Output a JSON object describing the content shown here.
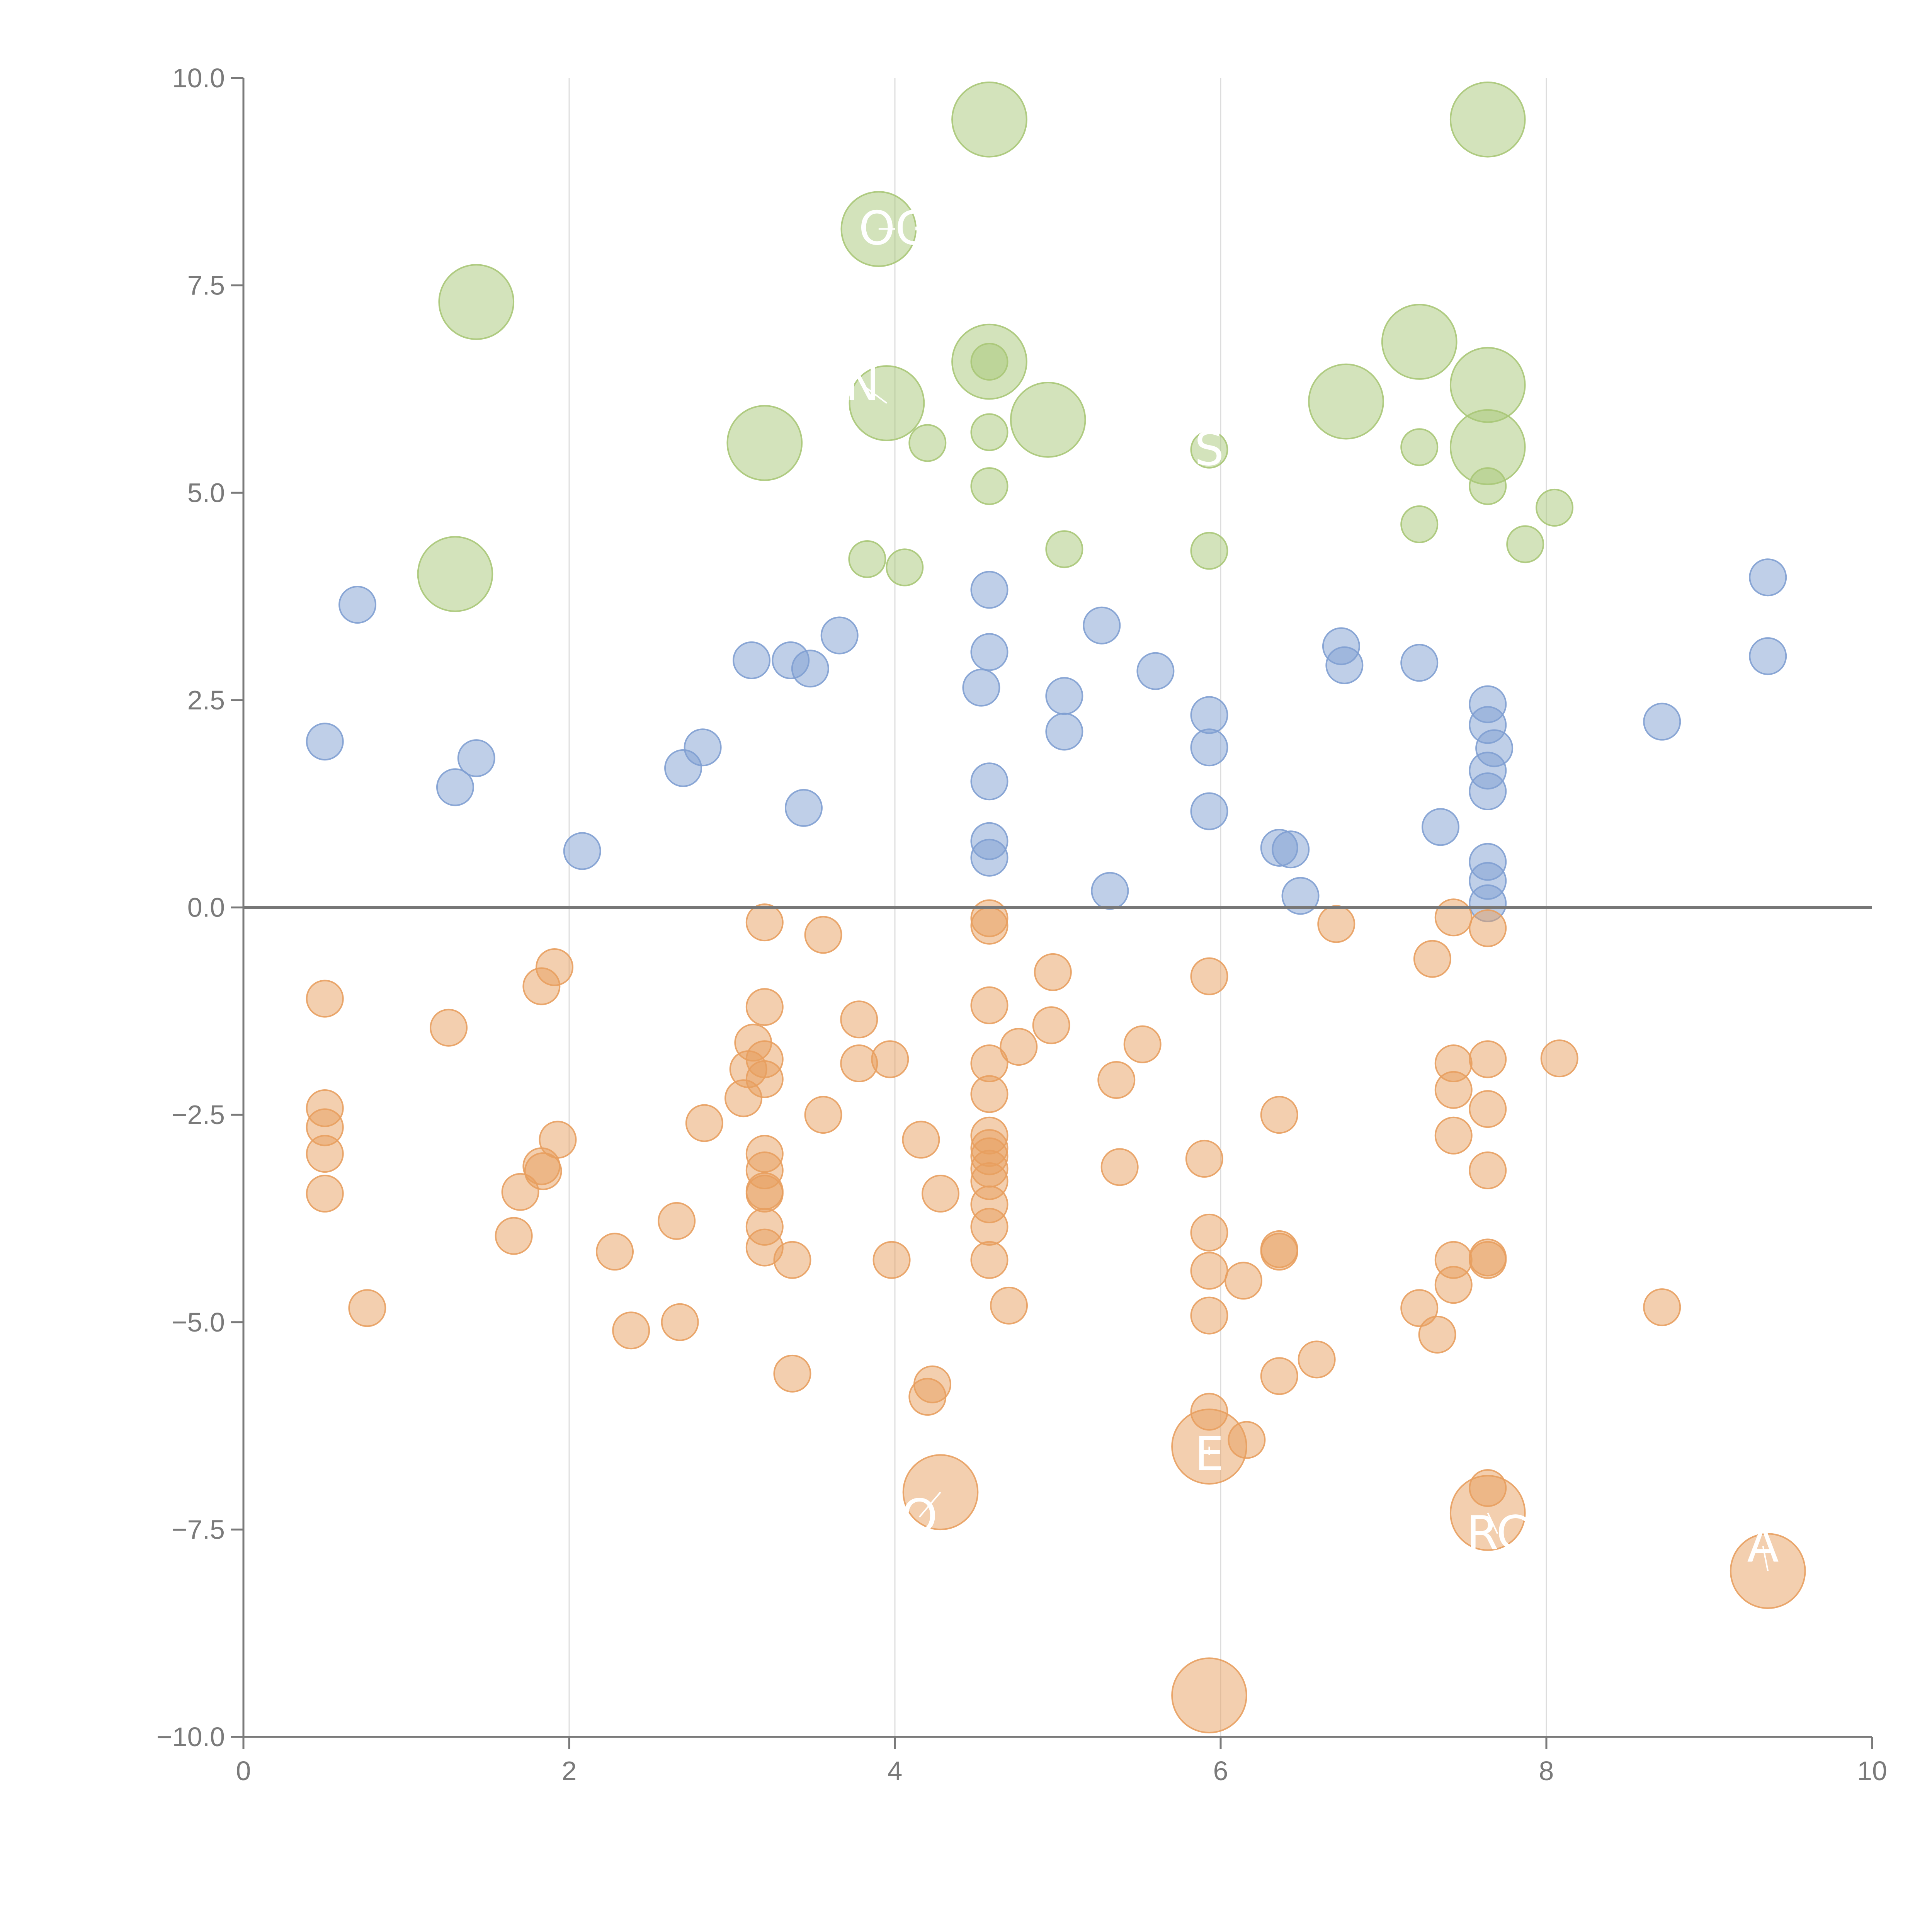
{
  "chart_data": {
    "type": "scatter",
    "title": "",
    "xlabel": "",
    "ylabel": "",
    "xlim": [
      0,
      10
    ],
    "ylim": [
      -10,
      10
    ],
    "x_ticks": [
      0,
      2,
      4,
      6,
      8,
      10
    ],
    "x_tick_labels": [
      "0",
      "2",
      "4",
      "6",
      "8",
      "10"
    ],
    "y_ticks": [
      10,
      7.5,
      5,
      2.5,
      0,
      -2.5,
      -5,
      -7.5,
      -10
    ],
    "y_tick_labels": [
      "10.0",
      "7.5",
      "5.0",
      "2.5",
      "0.0",
      "−2.5",
      "−5.0",
      "−7.5",
      "−10.0"
    ],
    "grid": "vertical",
    "zero_line": 0,
    "colors": {
      "series_1": "#7f9fd1",
      "series_2": "#a8c777",
      "series_3": "#e89f5f",
      "axis": "#7a7a7a",
      "grid": "#dddddd",
      "zero_line": "#777777"
    },
    "series": [
      {
        "color": "#7f9fd1",
        "points": [
          [
            0.5,
            2.0,
            1
          ],
          [
            0.7,
            3.65,
            1
          ],
          [
            1.3,
            1.45,
            1
          ],
          [
            1.43,
            1.8,
            1
          ],
          [
            2.08,
            0.68,
            1
          ],
          [
            2.7,
            1.68,
            1
          ],
          [
            2.82,
            1.93,
            1
          ],
          [
            3.12,
            2.98,
            1
          ],
          [
            3.36,
            2.98,
            1
          ],
          [
            3.44,
            1.2,
            1
          ],
          [
            3.48,
            2.88,
            1
          ],
          [
            3.66,
            3.28,
            1
          ],
          [
            4.53,
            2.65,
            1
          ],
          [
            4.58,
            3.83,
            1
          ],
          [
            4.58,
            3.08,
            1
          ],
          [
            4.58,
            1.52,
            1
          ],
          [
            4.58,
            0.8,
            1
          ],
          [
            4.58,
            0.6,
            1
          ],
          [
            5.04,
            2.55,
            1
          ],
          [
            5.04,
            2.12,
            1
          ],
          [
            5.27,
            3.4,
            1
          ],
          [
            5.32,
            0.2,
            1
          ],
          [
            5.6,
            2.85,
            1
          ],
          [
            5.93,
            2.32,
            1
          ],
          [
            5.93,
            1.93,
            1
          ],
          [
            5.93,
            1.16,
            1
          ],
          [
            6.36,
            0.72,
            1
          ],
          [
            6.43,
            0.7,
            1
          ],
          [
            6.49,
            0.14,
            1
          ],
          [
            6.74,
            3.15,
            1
          ],
          [
            6.76,
            2.92,
            1
          ],
          [
            7.22,
            2.95,
            1
          ],
          [
            7.35,
            0.97,
            1
          ],
          [
            7.64,
            2.45,
            1
          ],
          [
            7.64,
            2.2,
            1
          ],
          [
            7.68,
            1.92,
            1
          ],
          [
            7.64,
            1.65,
            1
          ],
          [
            7.64,
            1.4,
            1
          ],
          [
            7.64,
            0.55,
            1
          ],
          [
            7.64,
            0.32,
            1
          ],
          [
            7.64,
            0.05,
            1
          ],
          [
            8.71,
            2.24,
            1
          ],
          [
            9.36,
            3.98,
            1
          ],
          [
            9.36,
            3.03,
            1
          ]
        ]
      },
      {
        "color": "#a8c777",
        "points": [
          [
            4.58,
            9.5,
            2.05
          ],
          [
            7.64,
            9.5,
            2.05
          ],
          [
            3.9,
            8.18,
            2.05
          ],
          [
            1.43,
            7.3,
            2.05
          ],
          [
            4.58,
            6.58,
            2.05
          ],
          [
            7.22,
            6.82,
            2.05
          ],
          [
            7.64,
            6.3,
            2.05
          ],
          [
            3.95,
            6.08,
            2.05
          ],
          [
            6.77,
            6.1,
            2.05
          ],
          [
            4.94,
            5.88,
            2.05
          ],
          [
            3.2,
            5.6,
            2.05
          ],
          [
            7.64,
            5.55,
            2.05
          ],
          [
            1.3,
            4.02,
            2.05
          ],
          [
            4.58,
            6.58,
            1
          ],
          [
            4.58,
            5.73,
            1
          ],
          [
            4.2,
            5.6,
            1
          ],
          [
            5.93,
            5.52,
            1
          ],
          [
            7.22,
            5.55,
            1
          ],
          [
            4.58,
            5.08,
            1
          ],
          [
            7.64,
            5.08,
            1
          ],
          [
            8.05,
            4.82,
            1
          ],
          [
            7.22,
            4.62,
            1
          ],
          [
            7.87,
            4.38,
            1
          ],
          [
            5.04,
            4.32,
            1
          ],
          [
            5.93,
            4.3,
            1
          ],
          [
            3.83,
            4.2,
            1
          ],
          [
            4.06,
            4.1,
            1
          ]
        ]
      },
      {
        "color": "#e89f5f",
        "points": [
          [
            5.93,
            -9.5,
            2.05
          ],
          [
            9.36,
            -8.0,
            2.05
          ],
          [
            7.64,
            -7.3,
            2.05
          ],
          [
            4.28,
            -7.05,
            2.05
          ],
          [
            5.93,
            -6.5,
            2.05
          ],
          [
            0.5,
            -1.1,
            1
          ],
          [
            0.5,
            -2.42,
            1
          ],
          [
            0.5,
            -2.65,
            1
          ],
          [
            0.5,
            -2.97,
            1
          ],
          [
            0.5,
            -3.45,
            1
          ],
          [
            0.76,
            -4.83,
            1
          ],
          [
            1.26,
            -1.45,
            1
          ],
          [
            1.83,
            -0.95,
            1
          ],
          [
            1.91,
            -0.72,
            1
          ],
          [
            1.93,
            -2.8,
            1
          ],
          [
            1.83,
            -3.12,
            1
          ],
          [
            1.84,
            -3.18,
            1
          ],
          [
            1.7,
            -3.43,
            1
          ],
          [
            1.66,
            -3.96,
            1
          ],
          [
            2.28,
            -4.15,
            1
          ],
          [
            2.38,
            -5.1,
            1
          ],
          [
            2.66,
            -3.78,
            1
          ],
          [
            2.68,
            -5.0,
            1
          ],
          [
            2.83,
            -2.6,
            1
          ],
          [
            3.2,
            -0.18,
            1
          ],
          [
            3.2,
            -1.2,
            1
          ],
          [
            3.13,
            -1.63,
            1
          ],
          [
            3.2,
            -1.83,
            1
          ],
          [
            3.1,
            -1.95,
            1
          ],
          [
            3.2,
            -2.07,
            1
          ],
          [
            3.07,
            -2.3,
            1
          ],
          [
            3.2,
            -2.97,
            1
          ],
          [
            3.2,
            -3.17,
            1
          ],
          [
            3.2,
            -3.42,
            1
          ],
          [
            3.2,
            -3.45,
            1
          ],
          [
            3.2,
            -3.85,
            1
          ],
          [
            3.2,
            -4.1,
            1
          ],
          [
            3.37,
            -4.25,
            1
          ],
          [
            3.37,
            -5.62,
            1
          ],
          [
            3.56,
            -0.33,
            1
          ],
          [
            3.56,
            -2.5,
            1
          ],
          [
            3.78,
            -1.35,
            1
          ],
          [
            3.78,
            -1.88,
            1
          ],
          [
            3.97,
            -1.83,
            1
          ],
          [
            3.98,
            -4.25,
            1
          ],
          [
            4.16,
            -2.8,
            1
          ],
          [
            4.28,
            -3.45,
            1
          ],
          [
            4.23,
            -5.75,
            1
          ],
          [
            4.2,
            -5.9,
            1
          ],
          [
            4.58,
            -0.13,
            1
          ],
          [
            4.58,
            -0.22,
            1
          ],
          [
            4.58,
            -1.18,
            1
          ],
          [
            4.58,
            -1.88,
            1
          ],
          [
            4.58,
            -2.25,
            1
          ],
          [
            4.58,
            -2.75,
            1
          ],
          [
            4.58,
            -2.9,
            1
          ],
          [
            4.58,
            -3.0,
            1
          ],
          [
            4.58,
            -3.15,
            1
          ],
          [
            4.58,
            -3.3,
            1
          ],
          [
            4.58,
            -3.58,
            1
          ],
          [
            4.58,
            -3.85,
            1
          ],
          [
            4.58,
            -4.25,
            1
          ],
          [
            4.7,
            -4.8,
            1
          ],
          [
            4.76,
            -1.68,
            1
          ],
          [
            4.97,
            -0.78,
            1
          ],
          [
            4.96,
            -1.42,
            1
          ],
          [
            5.36,
            -2.08,
            1
          ],
          [
            5.38,
            -3.13,
            1
          ],
          [
            5.52,
            -1.65,
            1
          ],
          [
            5.93,
            -0.83,
            1
          ],
          [
            5.9,
            -3.03,
            1
          ],
          [
            5.93,
            -3.92,
            1
          ],
          [
            5.93,
            -4.38,
            1
          ],
          [
            5.93,
            -4.92,
            1
          ],
          [
            5.93,
            -6.08,
            1
          ],
          [
            6.14,
            -4.5,
            1
          ],
          [
            6.16,
            -6.42,
            1
          ],
          [
            6.36,
            -2.5,
            1
          ],
          [
            6.36,
            -4.12,
            1
          ],
          [
            6.36,
            -4.15,
            1
          ],
          [
            6.36,
            -5.65,
            1
          ],
          [
            6.59,
            -5.45,
            1
          ],
          [
            6.71,
            -0.2,
            1
          ],
          [
            7.43,
            -0.12,
            1
          ],
          [
            7.3,
            -0.62,
            1
          ],
          [
            7.43,
            -1.88,
            1
          ],
          [
            7.43,
            -2.2,
            1
          ],
          [
            7.43,
            -2.75,
            1
          ],
          [
            7.43,
            -4.25,
            1
          ],
          [
            7.43,
            -4.55,
            1
          ],
          [
            7.22,
            -4.83,
            1
          ],
          [
            7.33,
            -5.15,
            1
          ],
          [
            7.64,
            -0.25,
            1
          ],
          [
            7.64,
            -1.83,
            1
          ],
          [
            7.64,
            -2.43,
            1
          ],
          [
            7.64,
            -3.17,
            1
          ],
          [
            7.64,
            -4.22,
            1
          ],
          [
            7.64,
            -4.25,
            1
          ],
          [
            7.64,
            -7.0,
            1
          ],
          [
            8.08,
            -1.82,
            1
          ],
          [
            8.71,
            -4.82,
            1
          ]
        ]
      }
    ],
    "annotations": [
      {
        "text": "OG",
        "x": 3.9,
        "y": 8.18,
        "lx": 4.0,
        "ly": 8.18
      },
      {
        "text": "N",
        "x": 3.95,
        "y": 6.08,
        "lx": 3.8,
        "ly": 6.3
      },
      {
        "text": "S",
        "x": 5.93,
        "y": 5.52,
        "lx": 5.93,
        "ly": 5.52
      },
      {
        "text": "E",
        "x": 5.93,
        "y": -6.5,
        "lx": 5.93,
        "ly": -6.6
      },
      {
        "text": "O",
        "x": 4.28,
        "y": -7.05,
        "lx": 4.15,
        "ly": -7.35
      },
      {
        "text": "RC",
        "x": 7.64,
        "y": -7.3,
        "lx": 7.7,
        "ly": -7.55
      },
      {
        "text": "A",
        "x": 9.36,
        "y": -8.0,
        "lx": 9.33,
        "ly": -7.7
      }
    ]
  }
}
